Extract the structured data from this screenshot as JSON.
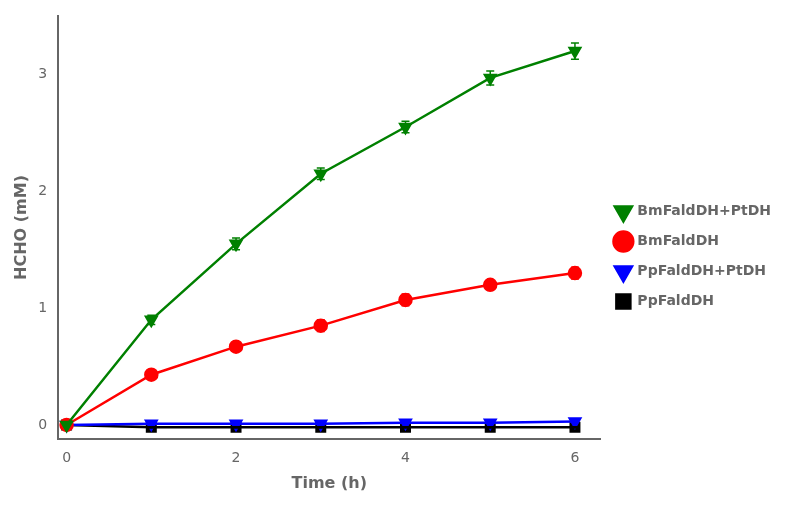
{
  "chart_data": {
    "type": "line",
    "x": [
      0,
      1,
      2,
      3,
      4,
      5,
      6
    ],
    "xlabel": "Time (h)",
    "ylabel": "HCHO (mM)",
    "xlim": [
      -0.1,
      6.3
    ],
    "ylim": [
      -0.12,
      3.5
    ],
    "xticks": [
      0,
      2,
      4,
      6
    ],
    "yticks": [
      0,
      1,
      2,
      3
    ],
    "grid": false,
    "legend": "right",
    "series": [
      {
        "name": "BmFaldDH+PtDH",
        "color": "#008000",
        "marker": "triangle_down",
        "values": [
          0,
          0.9,
          1.55,
          2.15,
          2.55,
          2.97,
          3.2
        ],
        "errors": [
          0.0,
          0.04,
          0.05,
          0.05,
          0.05,
          0.06,
          0.07
        ]
      },
      {
        "name": "BmFaldDH",
        "color": "#ff0000",
        "marker": "circle",
        "values": [
          0,
          0.43,
          0.67,
          0.85,
          1.07,
          1.2,
          1.3
        ],
        "errors": [
          0.0,
          0.04,
          0.04,
          0.05,
          0.05,
          0.04,
          0.05
        ]
      },
      {
        "name": "PpFaldDH+PtDH",
        "color": "#0000ff",
        "marker": "triangle_down",
        "values": [
          0,
          0.01,
          0.01,
          0.01,
          0.02,
          0.02,
          0.03
        ],
        "errors": [
          0.0,
          0.005,
          0.005,
          0.005,
          0.005,
          0.005,
          0.005
        ]
      },
      {
        "name": "PpFaldDH",
        "color": "#000000",
        "marker": "square",
        "values": [
          0,
          -0.02,
          -0.02,
          -0.02,
          -0.02,
          -0.02,
          -0.02
        ],
        "errors": [
          0.0,
          0.005,
          0.005,
          0.005,
          0.005,
          0.005,
          0.005
        ]
      }
    ]
  }
}
